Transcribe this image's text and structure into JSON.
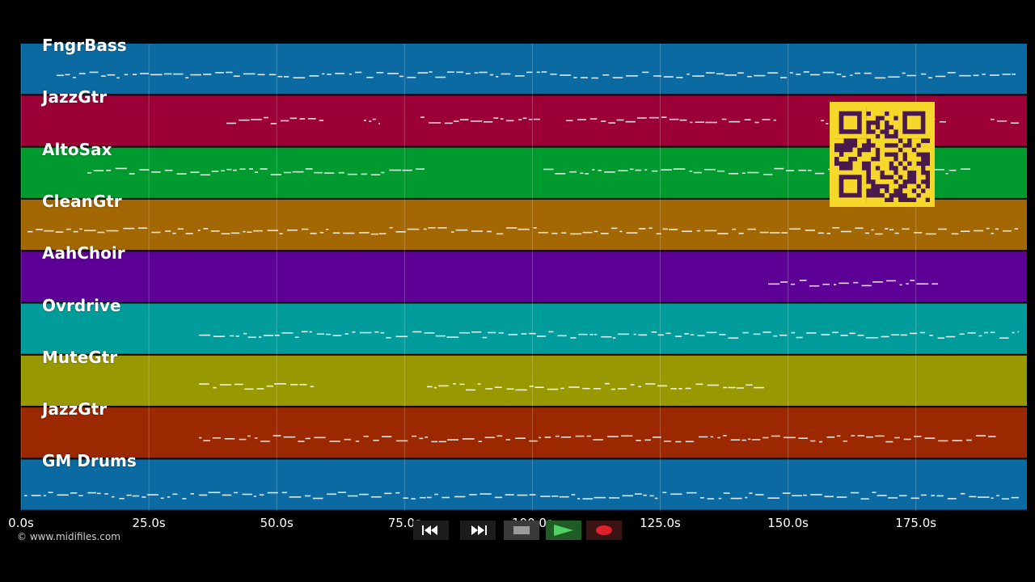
{
  "tracks": [
    {
      "name": "FngrBass",
      "color": "#0a6aa1"
    },
    {
      "name": "JazzGtr",
      "color": "#9b0036"
    },
    {
      "name": "AltoSax",
      "color": "#009a2f"
    },
    {
      "name": "CleanGtr",
      "color": "#a36704"
    },
    {
      "name": "AahChoir",
      "color": "#5c0096"
    },
    {
      "name": "Ovrdrive",
      "color": "#009c9c"
    },
    {
      "name": "MuteGtr",
      "color": "#989800"
    },
    {
      "name": "JazzGtr",
      "color": "#9b2800"
    },
    {
      "name": "GM Drums",
      "color": "#0a6aa1"
    }
  ],
  "time_axis": {
    "ticks": [
      "0.0s",
      "25.0s",
      "50.0s",
      "75.0s",
      "100.0s",
      "125.0s",
      "150.0s",
      "175.0s"
    ]
  },
  "transport": {
    "rewind": {
      "icon": "rewind-icon"
    },
    "forward": {
      "icon": "fast-forward-icon"
    },
    "stop": {
      "icon": "stop-icon"
    },
    "play": {
      "icon": "play-icon"
    },
    "record": {
      "icon": "record-icon"
    }
  },
  "copyright": "© www.midifiles.com",
  "qr_code": {
    "icon": "qr-code-icon",
    "color": "#f5d82a"
  }
}
